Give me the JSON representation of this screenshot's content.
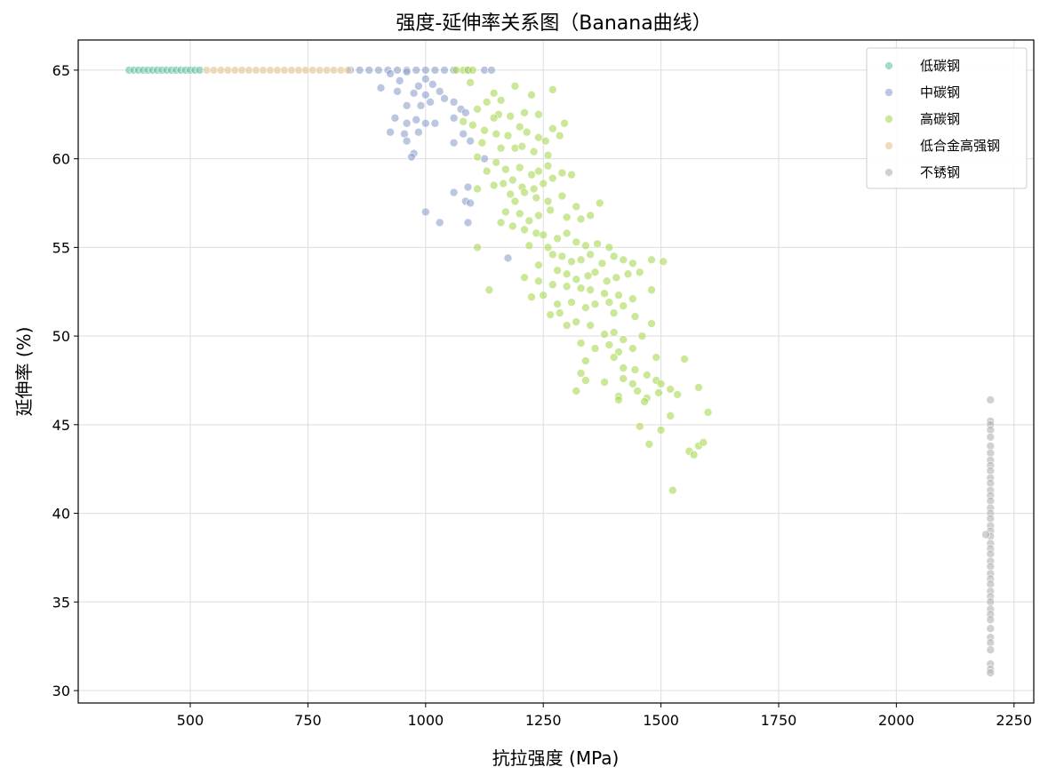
{
  "chart_data": {
    "type": "scatter",
    "title": "强度-延伸率关系图（Banana曲线）",
    "xlabel": "抗拉强度 (MPa)",
    "ylabel": "延伸率 (%)",
    "xlim": [
      262,
      2292
    ],
    "ylim": [
      29.3,
      66.7
    ],
    "xticks": [
      500,
      750,
      1000,
      1250,
      1500,
      1750,
      2000,
      2250
    ],
    "yticks": [
      30,
      35,
      40,
      45,
      50,
      55,
      60,
      65
    ],
    "grid": true,
    "legend_position": "top-right",
    "series": [
      {
        "name": "低碳钢",
        "color": "#66c2a5",
        "points": [
          [
            370,
            65
          ],
          [
            380,
            65
          ],
          [
            390,
            65
          ],
          [
            400,
            65
          ],
          [
            410,
            65
          ],
          [
            420,
            65
          ],
          [
            430,
            65
          ],
          [
            440,
            65
          ],
          [
            450,
            65
          ],
          [
            460,
            65
          ],
          [
            470,
            65
          ],
          [
            480,
            65
          ],
          [
            490,
            65
          ],
          [
            500,
            65
          ],
          [
            510,
            65
          ],
          [
            520,
            65
          ]
        ]
      },
      {
        "name": "中碳钢",
        "color": "#8da0cb",
        "points": [
          [
            840,
            65
          ],
          [
            860,
            65
          ],
          [
            880,
            65
          ],
          [
            900,
            65
          ],
          [
            920,
            65
          ],
          [
            940,
            65
          ],
          [
            960,
            65
          ],
          [
            980,
            65
          ],
          [
            1000,
            65
          ],
          [
            1020,
            65
          ],
          [
            1040,
            65
          ],
          [
            1060,
            65
          ],
          [
            1090,
            65
          ],
          [
            1125,
            65
          ],
          [
            1140,
            65
          ],
          [
            905,
            64
          ],
          [
            925,
            64.8
          ],
          [
            945,
            64.4
          ],
          [
            960,
            64.9
          ],
          [
            985,
            64.1
          ],
          [
            1000,
            64.5
          ],
          [
            1015,
            64.2
          ],
          [
            1030,
            63.8
          ],
          [
            940,
            63.8
          ],
          [
            975,
            63.7
          ],
          [
            1000,
            63.6
          ],
          [
            1040,
            63.4
          ],
          [
            960,
            63
          ],
          [
            990,
            63
          ],
          [
            1010,
            63.2
          ],
          [
            1060,
            63.2
          ],
          [
            1075,
            62.8
          ],
          [
            1085,
            62.6
          ],
          [
            935,
            62.3
          ],
          [
            960,
            62
          ],
          [
            980,
            62.2
          ],
          [
            1000,
            62
          ],
          [
            1020,
            62
          ],
          [
            1060,
            62.3
          ],
          [
            925,
            61.5
          ],
          [
            955,
            61.4
          ],
          [
            985,
            61.5
          ],
          [
            1080,
            61.4
          ],
          [
            960,
            61
          ],
          [
            1095,
            61
          ],
          [
            975,
            60.3
          ],
          [
            970,
            60.1
          ],
          [
            1060,
            60.9
          ],
          [
            1125,
            60
          ],
          [
            1090,
            58.4
          ],
          [
            1060,
            58.1
          ],
          [
            1085,
            57.6
          ],
          [
            1095,
            57.5
          ],
          [
            1000,
            57
          ],
          [
            1090,
            56.4
          ],
          [
            1030,
            56.4
          ],
          [
            1175,
            54.4
          ]
        ]
      },
      {
        "name": "高碳钢",
        "color": "#a6d854",
        "points": [
          [
            1080,
            65
          ],
          [
            1090,
            65
          ],
          [
            1100,
            65
          ],
          [
            1065,
            65
          ],
          [
            1095,
            64.3
          ],
          [
            1130,
            63.2
          ],
          [
            1145,
            63.7
          ],
          [
            1160,
            63.3
          ],
          [
            1190,
            64.1
          ],
          [
            1225,
            63.6
          ],
          [
            1270,
            63.9
          ],
          [
            1110,
            62.8
          ],
          [
            1155,
            62.5
          ],
          [
            1180,
            62.4
          ],
          [
            1210,
            62.6
          ],
          [
            1240,
            62.5
          ],
          [
            1145,
            62.3
          ],
          [
            1080,
            62.1
          ],
          [
            1100,
            61.9
          ],
          [
            1125,
            61.6
          ],
          [
            1150,
            61.4
          ],
          [
            1175,
            61.3
          ],
          [
            1200,
            61.8
          ],
          [
            1215,
            61.5
          ],
          [
            1240,
            61.2
          ],
          [
            1255,
            61
          ],
          [
            1270,
            61.7
          ],
          [
            1295,
            62
          ],
          [
            1285,
            61.3
          ],
          [
            1120,
            60.9
          ],
          [
            1160,
            60.6
          ],
          [
            1190,
            60.6
          ],
          [
            1205,
            60.7
          ],
          [
            1230,
            60.4
          ],
          [
            1260,
            60.2
          ],
          [
            1110,
            60.1
          ],
          [
            1150,
            59.8
          ],
          [
            1130,
            59.3
          ],
          [
            1170,
            59.4
          ],
          [
            1200,
            59.5
          ],
          [
            1225,
            59.1
          ],
          [
            1240,
            59.3
          ],
          [
            1260,
            59.6
          ],
          [
            1290,
            59.2
          ],
          [
            1310,
            59.1
          ],
          [
            1165,
            58.6
          ],
          [
            1185,
            58.8
          ],
          [
            1205,
            58.4
          ],
          [
            1230,
            58.3
          ],
          [
            1250,
            58.6
          ],
          [
            1270,
            58.9
          ],
          [
            1110,
            58.3
          ],
          [
            1145,
            58.5
          ],
          [
            1180,
            58
          ],
          [
            1210,
            58.1
          ],
          [
            1235,
            57.8
          ],
          [
            1260,
            57.6
          ],
          [
            1290,
            57.9
          ],
          [
            1320,
            57.3
          ],
          [
            1370,
            57.5
          ],
          [
            1190,
            57.6
          ],
          [
            1170,
            57
          ],
          [
            1200,
            56.9
          ],
          [
            1220,
            56.5
          ],
          [
            1240,
            56.8
          ],
          [
            1265,
            57.1
          ],
          [
            1300,
            56.7
          ],
          [
            1330,
            56.6
          ],
          [
            1350,
            56.8
          ],
          [
            1160,
            56.4
          ],
          [
            1185,
            56.2
          ],
          [
            1210,
            56
          ],
          [
            1235,
            55.8
          ],
          [
            1250,
            55.7
          ],
          [
            1280,
            55.5
          ],
          [
            1300,
            55.8
          ],
          [
            1320,
            55.3
          ],
          [
            1340,
            55.1
          ],
          [
            1365,
            55.2
          ],
          [
            1390,
            55
          ],
          [
            1110,
            55
          ],
          [
            1220,
            55.1
          ],
          [
            1260,
            55
          ],
          [
            1270,
            54.6
          ],
          [
            1290,
            54.5
          ],
          [
            1310,
            54.2
          ],
          [
            1330,
            54.3
          ],
          [
            1350,
            54.6
          ],
          [
            1375,
            54.1
          ],
          [
            1400,
            54.5
          ],
          [
            1420,
            54.3
          ],
          [
            1440,
            54.1
          ],
          [
            1480,
            54.3
          ],
          [
            1505,
            54.2
          ],
          [
            1240,
            54
          ],
          [
            1280,
            53.7
          ],
          [
            1300,
            53.5
          ],
          [
            1320,
            53.2
          ],
          [
            1345,
            53.4
          ],
          [
            1360,
            53.6
          ],
          [
            1385,
            53.1
          ],
          [
            1405,
            53.3
          ],
          [
            1430,
            53.5
          ],
          [
            1455,
            53.6
          ],
          [
            1210,
            53.3
          ],
          [
            1240,
            53.1
          ],
          [
            1270,
            52.9
          ],
          [
            1300,
            52.8
          ],
          [
            1330,
            52.7
          ],
          [
            1350,
            52.6
          ],
          [
            1380,
            52.4
          ],
          [
            1410,
            52.3
          ],
          [
            1440,
            52.1
          ],
          [
            1480,
            52.6
          ],
          [
            1135,
            52.6
          ],
          [
            1225,
            52.2
          ],
          [
            1250,
            52.3
          ],
          [
            1280,
            51.8
          ],
          [
            1310,
            51.9
          ],
          [
            1340,
            51.6
          ],
          [
            1360,
            51.8
          ],
          [
            1390,
            51.9
          ],
          [
            1420,
            51.7
          ],
          [
            1265,
            51.2
          ],
          [
            1285,
            51.3
          ],
          [
            1320,
            50.8
          ],
          [
            1350,
            50.6
          ],
          [
            1400,
            51.3
          ],
          [
            1445,
            51.1
          ],
          [
            1300,
            50.6
          ],
          [
            1380,
            50.1
          ],
          [
            1400,
            50.2
          ],
          [
            1420,
            49.8
          ],
          [
            1460,
            50
          ],
          [
            1480,
            50.7
          ],
          [
            1330,
            49.6
          ],
          [
            1360,
            49.3
          ],
          [
            1390,
            49.5
          ],
          [
            1410,
            49.1
          ],
          [
            1440,
            49.3
          ],
          [
            1340,
            48.6
          ],
          [
            1400,
            48.8
          ],
          [
            1420,
            48.2
          ],
          [
            1445,
            48.1
          ],
          [
            1490,
            48.8
          ],
          [
            1550,
            48.7
          ],
          [
            1330,
            47.9
          ],
          [
            1340,
            47.5
          ],
          [
            1380,
            47.4
          ],
          [
            1420,
            47.6
          ],
          [
            1440,
            47.3
          ],
          [
            1470,
            47.8
          ],
          [
            1490,
            47.5
          ],
          [
            1520,
            47
          ],
          [
            1580,
            47.1
          ],
          [
            1320,
            46.9
          ],
          [
            1410,
            46.6
          ],
          [
            1450,
            46.9
          ],
          [
            1470,
            46.5
          ],
          [
            1500,
            47.3
          ],
          [
            1535,
            46.7
          ],
          [
            1410,
            46.4
          ],
          [
            1495,
            46.8
          ],
          [
            1465,
            46.3
          ],
          [
            1600,
            45.7
          ],
          [
            1520,
            45.5
          ],
          [
            1500,
            44.7
          ],
          [
            1455,
            44.9
          ],
          [
            1475,
            43.9
          ],
          [
            1560,
            43.5
          ],
          [
            1570,
            43.3
          ],
          [
            1580,
            43.8
          ],
          [
            1590,
            44
          ],
          [
            1525,
            41.3
          ]
        ]
      },
      {
        "name": "低合金高强钢",
        "color": "#e5c494",
        "points": [
          [
            535,
            65
          ],
          [
            550,
            65
          ],
          [
            565,
            65
          ],
          [
            580,
            65
          ],
          [
            595,
            65
          ],
          [
            610,
            65
          ],
          [
            625,
            65
          ],
          [
            640,
            65
          ],
          [
            655,
            65
          ],
          [
            670,
            65
          ],
          [
            685,
            65
          ],
          [
            700,
            65
          ],
          [
            715,
            65
          ],
          [
            730,
            65
          ],
          [
            745,
            65
          ],
          [
            760,
            65
          ],
          [
            775,
            65
          ],
          [
            790,
            65
          ],
          [
            805,
            65
          ],
          [
            820,
            65
          ],
          [
            835,
            65
          ]
        ]
      },
      {
        "name": "不锈钢",
        "color": "#b3b3b3",
        "points": [
          [
            2200,
            46.4
          ],
          [
            2200,
            45.2
          ],
          [
            2200,
            45
          ],
          [
            2200,
            44.7
          ],
          [
            2200,
            44.3
          ],
          [
            2200,
            43.8
          ],
          [
            2200,
            43.4
          ],
          [
            2200,
            43
          ],
          [
            2200,
            42.7
          ],
          [
            2200,
            42.4
          ],
          [
            2200,
            42
          ],
          [
            2200,
            41.7
          ],
          [
            2200,
            41.3
          ],
          [
            2200,
            41
          ],
          [
            2200,
            40.7
          ],
          [
            2200,
            40.3
          ],
          [
            2200,
            40
          ],
          [
            2200,
            39.7
          ],
          [
            2200,
            39.3
          ],
          [
            2200,
            39
          ],
          [
            2200,
            38.7
          ],
          [
            2200,
            38.3
          ],
          [
            2200,
            38
          ],
          [
            2200,
            37.7
          ],
          [
            2200,
            37.3
          ],
          [
            2200,
            37
          ],
          [
            2200,
            36.6
          ],
          [
            2200,
            36.3
          ],
          [
            2200,
            36
          ],
          [
            2200,
            35.6
          ],
          [
            2200,
            35.3
          ],
          [
            2200,
            35
          ],
          [
            2200,
            34.6
          ],
          [
            2200,
            34.3
          ],
          [
            2200,
            34
          ],
          [
            2200,
            33.5
          ],
          [
            2200,
            33
          ],
          [
            2200,
            32.7
          ],
          [
            2200,
            32.3
          ],
          [
            2200,
            31.5
          ],
          [
            2200,
            31.2
          ],
          [
            2200,
            31
          ],
          [
            2190,
            38.8
          ]
        ]
      }
    ]
  }
}
